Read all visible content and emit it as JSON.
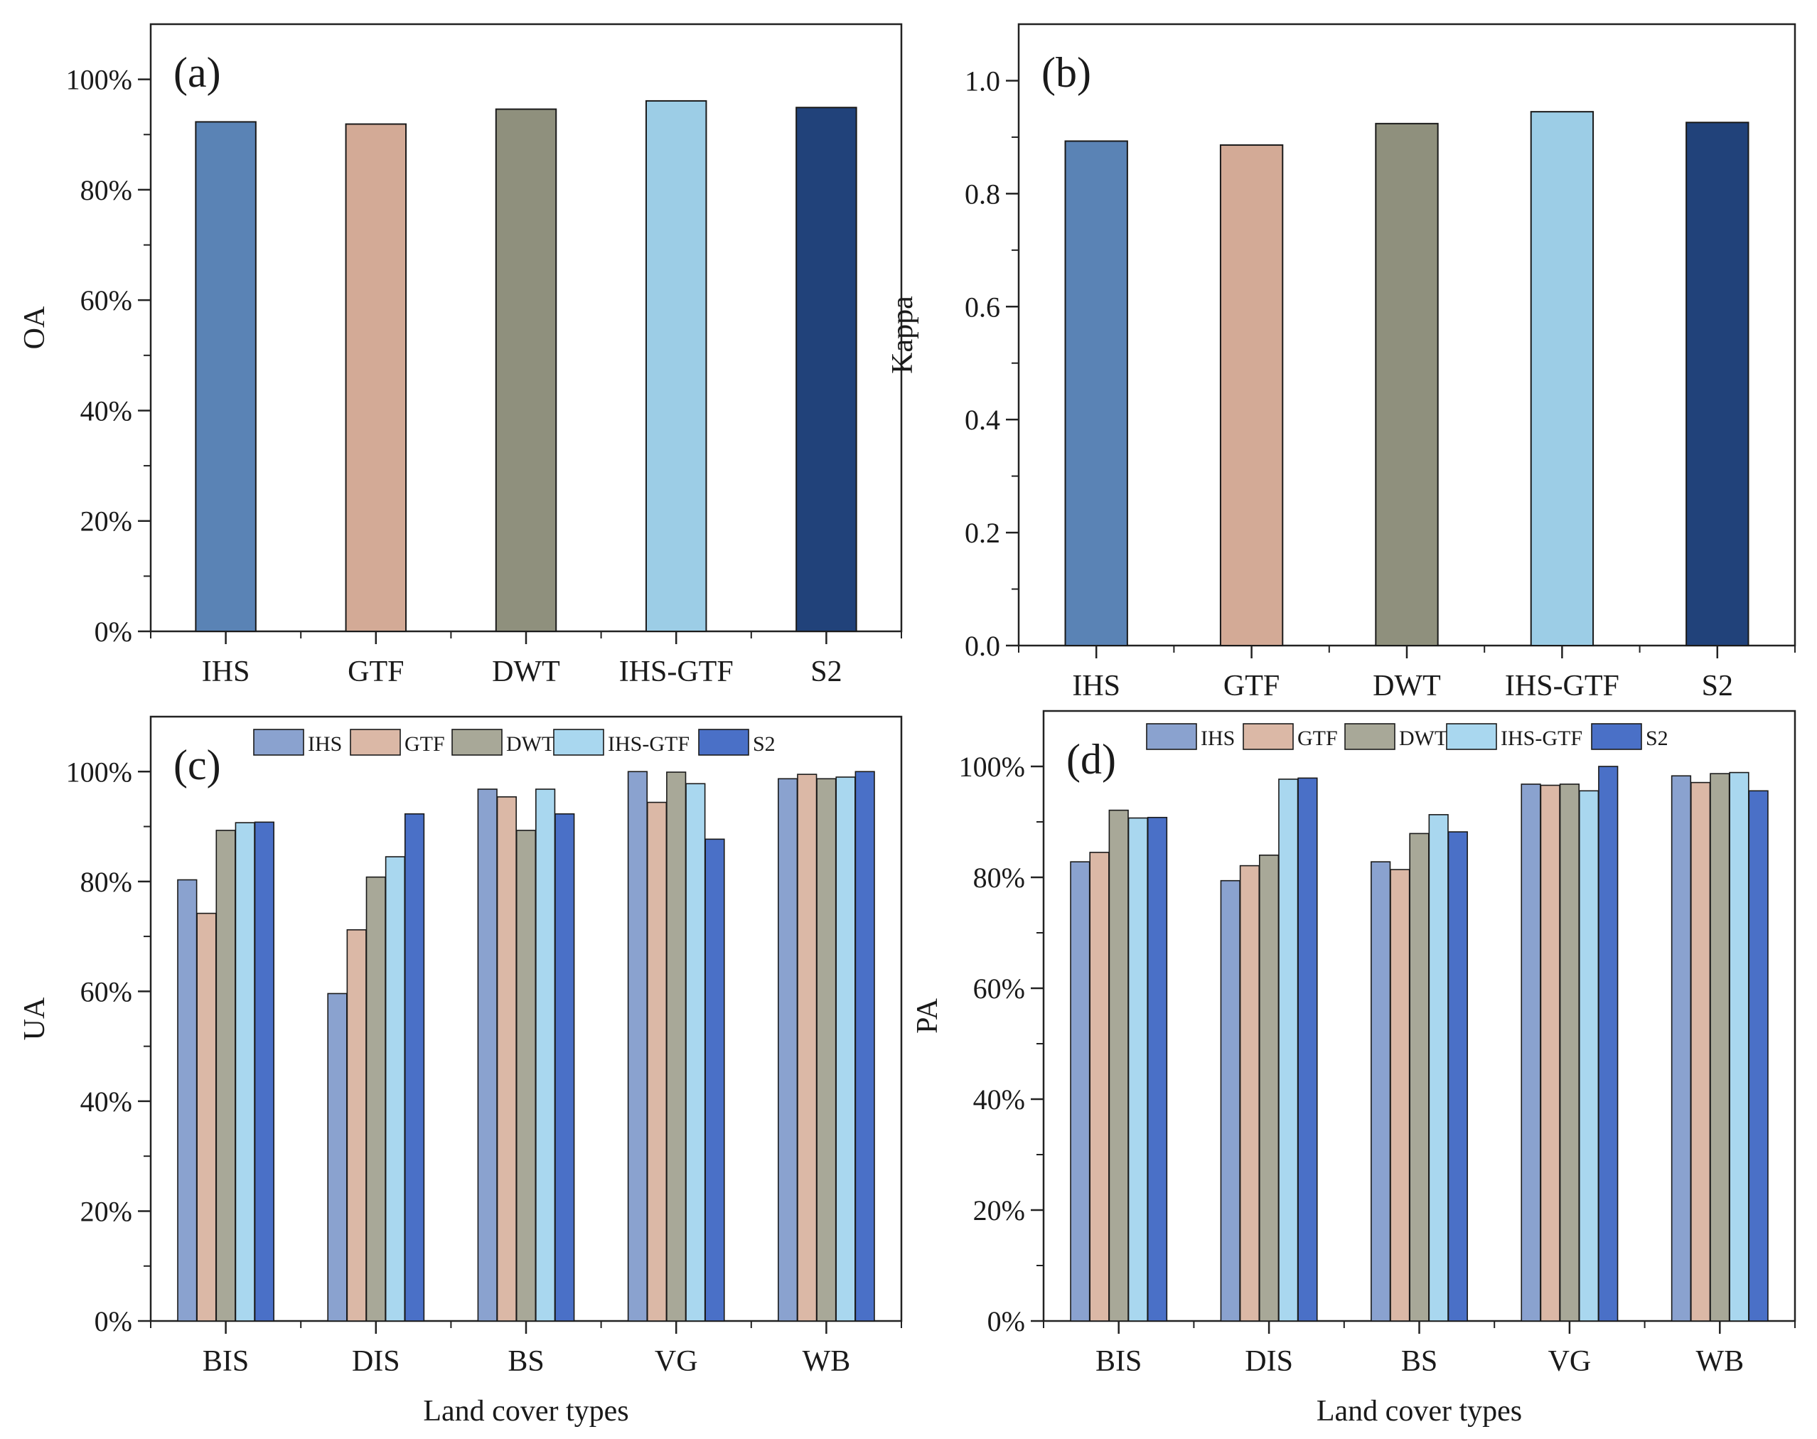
{
  "colors": {
    "IHS": "#5a83b5",
    "GTF": "#d3aa96",
    "DWT": "#8f907d",
    "IHS-GTF": "#9ccde6",
    "S2": "#21427a",
    "IHS_light": "#8aa2cf",
    "GTF_light": "#dbb8a6",
    "DWT_light": "#a8a898",
    "IHS-GTF_light": "#a9d7ef",
    "S2_light": "#4a70c7",
    "axis": "#222222"
  },
  "chart_data": [
    {
      "id": "a",
      "panel_label": "(a)",
      "type": "bar",
      "categories": [
        "IHS",
        "GTF",
        "DWT",
        "IHS-GTF",
        "S2"
      ],
      "values": [
        92.3,
        91.9,
        94.6,
        96.1,
        94.9
      ],
      "ylabel": "OA",
      "xlabel": "",
      "ylim": [
        0,
        110
      ],
      "yticks": [
        0,
        20,
        40,
        60,
        80,
        100
      ],
      "ytick_labels": [
        "0%",
        "20%",
        "40%",
        "60%",
        "80%",
        "100%"
      ]
    },
    {
      "id": "b",
      "panel_label": "(b)",
      "type": "bar",
      "categories": [
        "IHS",
        "GTF",
        "DWT",
        "IHS-GTF",
        "S2"
      ],
      "values": [
        0.893,
        0.886,
        0.924,
        0.945,
        0.926
      ],
      "ylabel": "Kappa",
      "xlabel": "",
      "ylim": [
        0,
        1.1
      ],
      "yticks": [
        0,
        0.2,
        0.4,
        0.6,
        0.8,
        1.0
      ],
      "ytick_labels": [
        "0.0",
        "0.2",
        "0.4",
        "0.6",
        "0.8",
        "1.0"
      ]
    },
    {
      "id": "c",
      "panel_label": "(c)",
      "type": "bar",
      "categories": [
        "BIS",
        "DIS",
        "BS",
        "VG",
        "WB"
      ],
      "series": [
        {
          "name": "IHS",
          "values": [
            80.3,
            59.6,
            96.8,
            100.0,
            98.7
          ]
        },
        {
          "name": "GTF",
          "values": [
            74.2,
            71.2,
            95.4,
            94.4,
            99.5
          ]
        },
        {
          "name": "DWT",
          "values": [
            89.3,
            80.8,
            89.3,
            99.9,
            98.7
          ]
        },
        {
          "name": "IHS-GTF",
          "values": [
            90.7,
            84.5,
            96.8,
            97.8,
            99.0
          ]
        },
        {
          "name": "S2",
          "values": [
            90.8,
            92.3,
            92.3,
            87.7,
            100.0
          ]
        }
      ],
      "ylabel": "UA",
      "xlabel": "Land cover types",
      "ylim": [
        0,
        110
      ],
      "yticks": [
        0,
        20,
        40,
        60,
        80,
        100
      ],
      "ytick_labels": [
        "0%",
        "20%",
        "40%",
        "60%",
        "80%",
        "100%"
      ],
      "legend": [
        "IHS",
        "GTF",
        "DWT",
        "IHS-GTF",
        "S2"
      ],
      "legend_position": "top"
    },
    {
      "id": "d",
      "panel_label": "(d)",
      "type": "bar",
      "categories": [
        "BIS",
        "DIS",
        "BS",
        "VG",
        "WB"
      ],
      "series": [
        {
          "name": "IHS",
          "values": [
            82.8,
            79.4,
            82.8,
            96.8,
            98.3
          ]
        },
        {
          "name": "GTF",
          "values": [
            84.5,
            82.1,
            81.4,
            96.6,
            97.1
          ]
        },
        {
          "name": "DWT",
          "values": [
            92.1,
            84.0,
            87.9,
            96.8,
            98.7
          ]
        },
        {
          "name": "IHS-GTF",
          "values": [
            90.7,
            97.7,
            91.3,
            95.6,
            98.9
          ]
        },
        {
          "name": "S2",
          "values": [
            90.8,
            97.9,
            88.2,
            100.0,
            95.6
          ]
        }
      ],
      "ylabel": "PA",
      "xlabel": "Land cover types",
      "ylim": [
        0,
        110
      ],
      "yticks": [
        0,
        20,
        40,
        60,
        80,
        100
      ],
      "ytick_labels": [
        "0%",
        "20%",
        "40%",
        "60%",
        "80%",
        "100%"
      ],
      "legend": [
        "IHS",
        "GTF",
        "DWT",
        "IHS-GTF",
        "S2"
      ],
      "legend_position": "top"
    }
  ]
}
